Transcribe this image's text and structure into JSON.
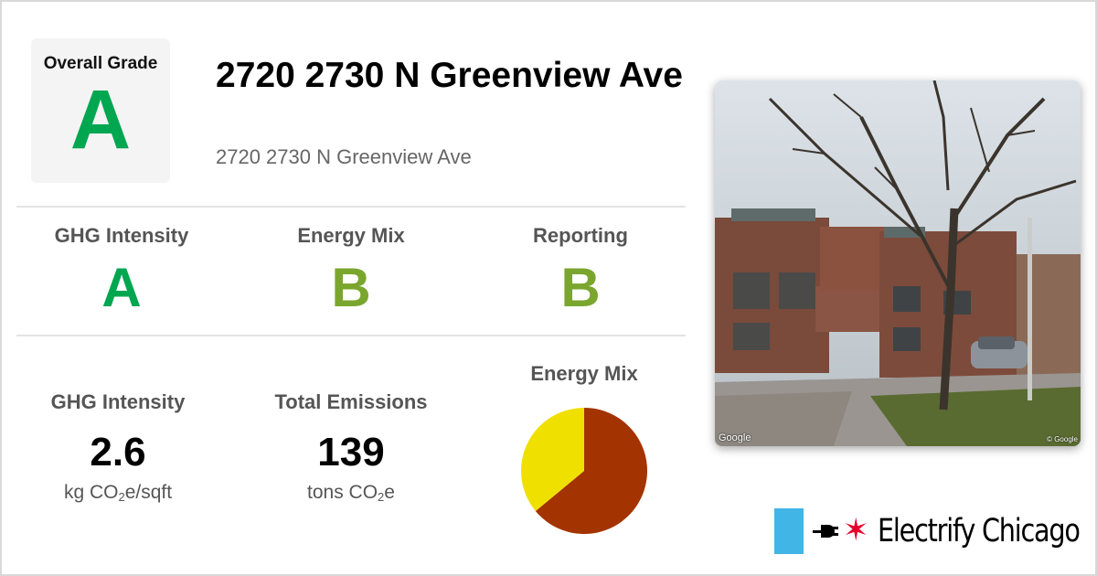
{
  "overall": {
    "label": "Overall Grade",
    "grade": "A"
  },
  "building": {
    "title": "2720 2730 N Greenview Ave",
    "address": "2720 2730 N Greenview Ave"
  },
  "grades": [
    {
      "label": "GHG Intensity",
      "grade": "A",
      "color": "#00a650"
    },
    {
      "label": "Energy Mix",
      "grade": "B",
      "color": "#7aa62e"
    },
    {
      "label": "Reporting",
      "grade": "B",
      "color": "#7aa62e"
    }
  ],
  "stats": {
    "ghg": {
      "label": "GHG Intensity",
      "value": "2.6",
      "unit_pre": "kg CO",
      "unit_sub": "2",
      "unit_post": "e/sqft"
    },
    "total": {
      "label": "Total Emissions",
      "value": "139",
      "unit_pre": "tons CO",
      "unit_sub": "2",
      "unit_post": "e"
    }
  },
  "chart_data": {
    "type": "pie",
    "title": "Energy Mix",
    "slices": [
      {
        "value": 64,
        "color": "#a33300"
      },
      {
        "value": 36,
        "color": "#f0e000"
      }
    ]
  },
  "photo": {
    "credit": "Google",
    "credit_small": "© Google"
  },
  "brand": {
    "name": "Electrify Chicago",
    "flag_color": "#41b6e6",
    "star_color": "#e4002b",
    "star": "✶"
  }
}
